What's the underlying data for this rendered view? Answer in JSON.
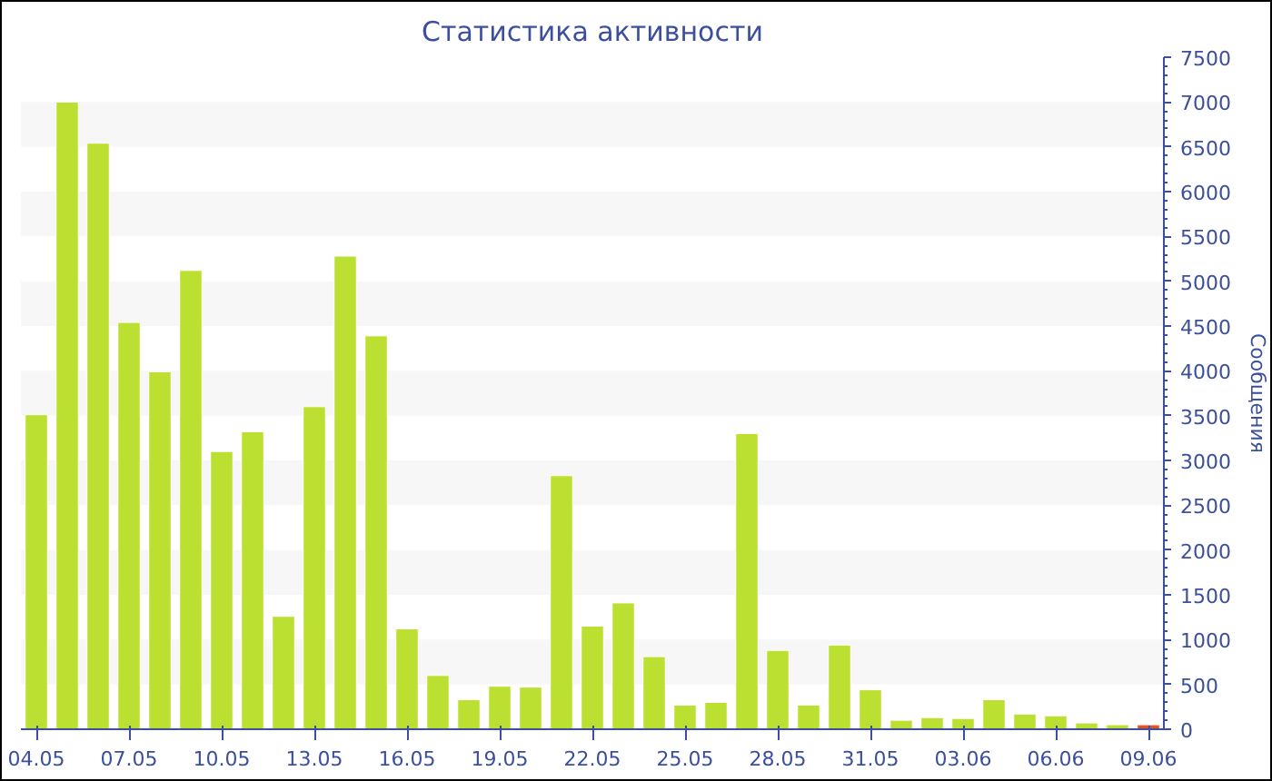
{
  "chart_data": {
    "type": "bar",
    "title": "Статистика активности",
    "ylabel": "Сообщения",
    "categories": [
      "04.05",
      null,
      null,
      "07.05",
      null,
      null,
      "10.05",
      null,
      null,
      "13.05",
      null,
      null,
      "16.05",
      null,
      null,
      "19.05",
      null,
      null,
      "22.05",
      null,
      null,
      "25.05",
      null,
      null,
      "28.05",
      null,
      null,
      "31.05",
      null,
      null,
      "03.06",
      null,
      null,
      "06.06",
      null,
      null,
      "09.06"
    ],
    "values": [
      3510,
      7000,
      6540,
      4540,
      3990,
      5120,
      3100,
      3320,
      1260,
      3600,
      5280,
      4390,
      1120,
      600,
      330,
      480,
      470,
      2830,
      1150,
      1410,
      810,
      270,
      300,
      3300,
      880,
      270,
      940,
      440,
      100,
      130,
      120,
      330,
      170,
      150,
      70,
      50,
      50
    ],
    "colors": [
      "#bce031",
      "#bce031",
      "#bce031",
      "#bce031",
      "#bce031",
      "#bce031",
      "#bce031",
      "#bce031",
      "#bce031",
      "#bce031",
      "#bce031",
      "#bce031",
      "#bce031",
      "#bce031",
      "#bce031",
      "#bce031",
      "#bce031",
      "#bce031",
      "#bce031",
      "#bce031",
      "#bce031",
      "#bce031",
      "#bce031",
      "#bce031",
      "#bce031",
      "#bce031",
      "#bce031",
      "#bce031",
      "#bce031",
      "#bce031",
      "#bce031",
      "#bce031",
      "#bce031",
      "#bce031",
      "#bce031",
      "#bce031",
      "#e0522a"
    ],
    "ylim": [
      0,
      7500
    ],
    "yticks": [
      0,
      500,
      1000,
      1500,
      2000,
      2500,
      3000,
      3500,
      4000,
      4500,
      5000,
      5500,
      6000,
      6500,
      7000,
      7500
    ],
    "bands": [
      {
        "axis": "y",
        "from": 500,
        "to": 1000,
        "color": "#f7f7f7"
      },
      {
        "axis": "y",
        "from": 1500,
        "to": 2000,
        "color": "#f7f7f7"
      },
      {
        "axis": "y",
        "from": 2500,
        "to": 3000,
        "color": "#f7f7f7"
      },
      {
        "axis": "y",
        "from": 3500,
        "to": 4000,
        "color": "#f7f7f7"
      },
      {
        "axis": "y",
        "from": 4500,
        "to": 5000,
        "color": "#f7f7f7"
      },
      {
        "axis": "y",
        "from": 5500,
        "to": 6000,
        "color": "#f7f7f7"
      },
      {
        "axis": "y",
        "from": 6500,
        "to": 7000,
        "color": "#f7f7f7"
      }
    ]
  }
}
